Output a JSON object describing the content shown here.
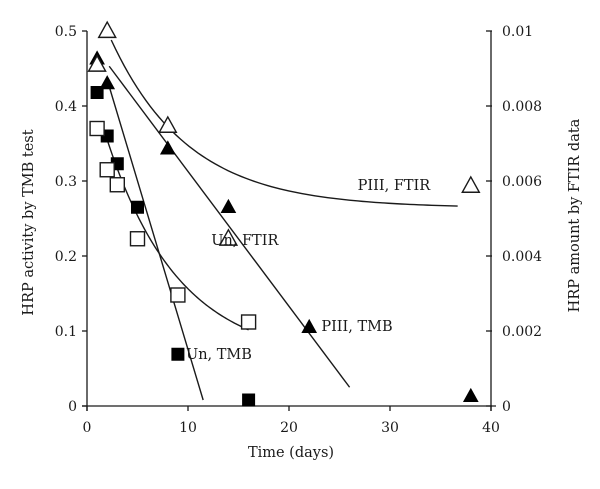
{
  "chart_data": {
    "type": "scatter",
    "title": "",
    "xlabel": "Time (days)",
    "ylabel": "HRP activity by TMB test",
    "y2label": "HRP amount by FTIR data",
    "xlim": [
      0,
      40
    ],
    "ylim": [
      0,
      0.5
    ],
    "y2lim": [
      0,
      0.01
    ],
    "grid": false,
    "legend": "none (inline annotations)",
    "x_ticks": [
      "0",
      "10",
      "20",
      "30",
      "40"
    ],
    "x_tick_values": [
      0,
      10,
      20,
      30,
      40
    ],
    "y_ticks": [
      "0",
      "0.1",
      "0.2",
      "0.3",
      "0.4",
      "0.5"
    ],
    "y_tick_values": [
      0,
      0.1,
      0.2,
      0.3,
      0.4,
      0.5
    ],
    "y2_ticks": [
      "0",
      "0.002",
      "0.004",
      "0.006",
      "0.008",
      "0.01"
    ],
    "y2_tick_values": [
      0,
      0.002,
      0.004,
      0.006,
      0.008,
      0.01
    ],
    "series": [
      {
        "name": "Un, TMB",
        "axis": "left",
        "marker": "square-filled",
        "x": [
          1,
          2,
          3,
          5,
          9,
          16
        ],
        "y": [
          0.418,
          0.36,
          0.323,
          0.265,
          0.069,
          0.008
        ],
        "fit": {
          "kind": "linear",
          "x": [
            2,
            11.5
          ],
          "y": [
            0.435,
            0.008
          ]
        }
      },
      {
        "name": "Un, FTIR",
        "axis": "right",
        "marker": "square-open",
        "x": [
          1,
          2,
          3,
          5,
          9,
          16
        ],
        "y": [
          0.0074,
          0.0063,
          0.0059,
          0.00446,
          0.00296,
          0.00224
        ],
        "fit": {
          "kind": "exponential",
          "x_range": [
            2,
            16
          ],
          "y0": 0.0071,
          "plateau": 0.0012,
          "rate": 0.14
        }
      },
      {
        "name": "PIII, TMB",
        "axis": "left",
        "marker": "triangle-filled",
        "x": [
          1,
          2,
          8,
          14,
          22,
          38
        ],
        "y": [
          0.463,
          0.43,
          0.343,
          0.265,
          0.105,
          0.013
        ],
        "fit": {
          "kind": "linear",
          "x": [
            2.2,
            26
          ],
          "y": [
            0.453,
            0.025
          ]
        }
      },
      {
        "name": "PIII, FTIR",
        "axis": "right",
        "marker": "triangle-open",
        "x": [
          1,
          2,
          8,
          14,
          38
        ],
        "y": [
          0.0091,
          0.01,
          0.00747,
          0.00446,
          0.00587
        ],
        "fit": {
          "kind": "exponential",
          "x_range": [
            2.4,
            36.7
          ],
          "y0": 0.00976,
          "plateau": 0.00528,
          "rate": 0.13
        }
      }
    ],
    "annotations": [
      {
        "text": "PIII, FTIR",
        "x": 26.8,
        "y": 0.288
      },
      {
        "text": "Un, FTIR",
        "x": 12.3,
        "y": 0.215
      },
      {
        "text": "PIII, TMB",
        "x": 23.2,
        "y": 0.1
      },
      {
        "text": "Un, TMB",
        "x": 9.8,
        "y": 0.063
      }
    ]
  }
}
